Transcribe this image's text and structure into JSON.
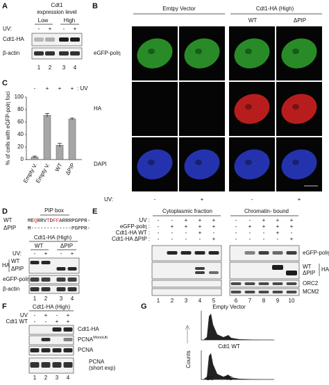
{
  "A": {
    "label": "A",
    "title": [
      "Cdt1",
      "expression level"
    ],
    "groups": [
      "Low",
      "High"
    ],
    "uv_label": "UV:",
    "uv": [
      "-",
      "+",
      "-",
      "+"
    ],
    "rows": [
      "Cdt1-HA",
      "β-actin"
    ],
    "lanes": [
      "1",
      "2",
      "3",
      "4"
    ]
  },
  "B": {
    "label": "B",
    "headers": [
      "Emtpy Vector",
      "Cdt1-HA (High)"
    ],
    "subheaders": [
      "WT",
      "ΔPIP"
    ],
    "rows": [
      "eGFP-polη",
      "HA",
      "DAPI"
    ],
    "uv_label": "UV:",
    "uv": [
      "-",
      "+",
      "-",
      "+"
    ]
  },
  "C": {
    "label": "C",
    "uv": [
      "-",
      "+",
      "+",
      "+"
    ],
    "uv_label": ": UV",
    "y_label": "% of cells with eGFP-polη foci",
    "categories": [
      "Empty V.",
      "Empty V.",
      "WT",
      "ΔPIP"
    ],
    "values": [
      4,
      71,
      23,
      65
    ],
    "errors": [
      1.5,
      3,
      3,
      1.5
    ],
    "ylim": [
      0,
      100
    ],
    "yticks": [
      0,
      20,
      40,
      60,
      80,
      100
    ],
    "color": "#a6a6a6"
  },
  "D": {
    "label": "D",
    "pip_box": "PIP box",
    "sequences": [
      {
        "name": "WT",
        "parts": [
          {
            "text": "ME"
          },
          {
            "text": "Q",
            "color": "#e02020"
          },
          {
            "text": "RRV"
          },
          {
            "text": "T",
            "color": "#e02020"
          },
          {
            "text": "D"
          },
          {
            "text": "FF",
            "color": "#e02020"
          },
          {
            "text": "ARRRPGPPR-"
          }
        ]
      },
      {
        "name": "ΔPIP",
        "parts": [
          {
            "text": "M-------------PGPPR-"
          }
        ]
      }
    ],
    "title": "Cdt1-HA (High)",
    "groups": [
      "WT",
      "ΔPIP"
    ],
    "uv_label": "UV:",
    "uv": [
      "-",
      "+",
      "-",
      "+"
    ],
    "ha": "HA",
    "ha_bands": [
      "WT",
      "ΔPIP"
    ],
    "rows": [
      "eGFP-polη",
      "β-actin"
    ],
    "lanes": [
      "1",
      "2",
      "3",
      "4"
    ]
  },
  "E": {
    "label": "E",
    "fractions": [
      "Cytoplasmic fraction",
      "Chromatin- bound"
    ],
    "conditions": [
      {
        "name": "UV :",
        "signs": [
          "-",
          "-",
          "+",
          "+",
          "+",
          "-",
          "-",
          "+",
          "+",
          "+"
        ]
      },
      {
        "name": "eGFP-polη :",
        "signs": [
          "-",
          "+",
          "+",
          "+",
          "+",
          "-",
          "+",
          "+",
          "+",
          "+"
        ]
      },
      {
        "name": "Cdt1-HA  WT :",
        "signs": [
          "-",
          "-",
          "-",
          "+",
          "-",
          "-",
          "-",
          "-",
          "+",
          "-"
        ]
      },
      {
        "name": "Cdt1-HA  ΔPIP :",
        "signs": [
          "-",
          "-",
          "-",
          "-",
          "+",
          "-",
          "-",
          "-",
          "-",
          "+"
        ]
      }
    ],
    "bands": [
      "eGFP-polη",
      "HA",
      "ORC2",
      "MCM2"
    ],
    "ha_bands": [
      "WT",
      "ΔPIP"
    ],
    "lanes": [
      "1",
      "2",
      "3",
      "4",
      "5",
      "6",
      "7",
      "8",
      "9",
      "10"
    ]
  },
  "F": {
    "label": "F",
    "title": "Cdt1-HA (High)",
    "conditions": [
      {
        "name": "UV",
        "signs": [
          "-",
          "+",
          "-",
          "+"
        ]
      },
      {
        "name": "Cdt1 WT",
        "signs": [
          "-",
          "-",
          "+",
          "+"
        ]
      }
    ],
    "bands": [
      {
        "text": "Cdt1-HA"
      },
      {
        "text": "PCNA",
        "sup": "MonoUb"
      },
      {
        "text": "PCNA"
      },
      {
        "text": "PCNA",
        "note": "(short exp)"
      }
    ],
    "lanes": [
      "1",
      "2",
      "3",
      "4"
    ]
  },
  "G": {
    "label": "G",
    "panels": [
      "Empty Vector",
      "Cdt1 WT"
    ],
    "y_label": "Counts",
    "x_labels": [
      "2C",
      "4C"
    ]
  }
}
